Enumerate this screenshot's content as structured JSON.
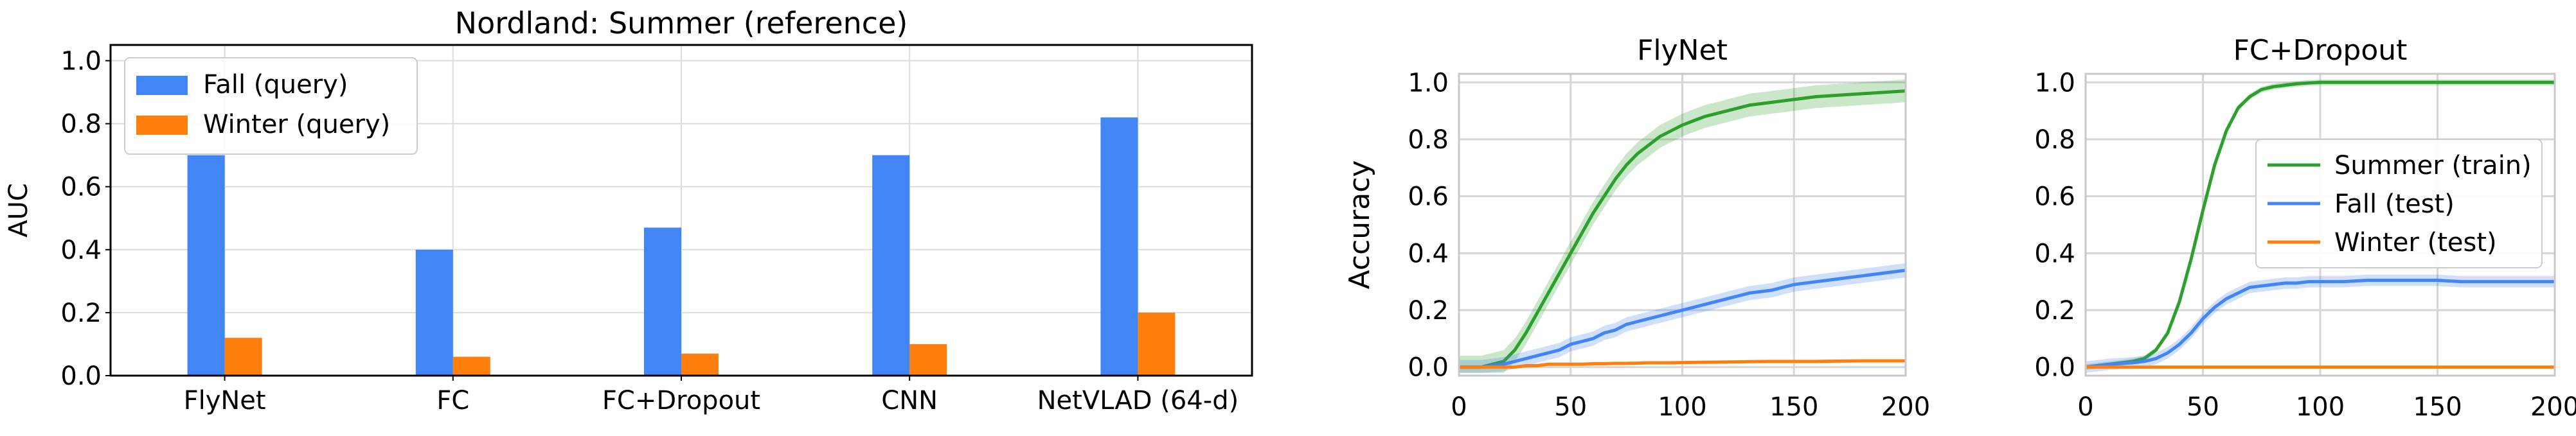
{
  "chart_data": [
    {
      "type": "bar",
      "title": "Nordland: Summer (reference)",
      "xlabel": "",
      "ylabel": "AUC",
      "ylim": [
        0,
        1.05
      ],
      "yticks": [
        "0.0",
        "0.2",
        "0.4",
        "0.6",
        "0.8",
        "1.0"
      ],
      "grid": true,
      "legend_position": "upper-left",
      "categories": [
        "FlyNet",
        "FC",
        "FC+Dropout",
        "CNN",
        "NetVLAD (64-d)"
      ],
      "series": [
        {
          "name": "Fall (query)",
          "color": "#4285f4",
          "values": [
            0.7,
            0.4,
            0.47,
            0.7,
            0.82
          ]
        },
        {
          "name": "Winter (query)",
          "color": "#ff7f0e",
          "values": [
            0.12,
            0.06,
            0.07,
            0.1,
            0.2
          ]
        }
      ]
    },
    {
      "type": "line",
      "title": "FlyNet",
      "xlabel": "",
      "ylabel": "Accuracy",
      "xlim": [
        0,
        200
      ],
      "ylim": [
        -0.03,
        1.03
      ],
      "xticks": [
        "0",
        "50",
        "100",
        "150",
        "200"
      ],
      "yticks": [
        "0.0",
        "0.2",
        "0.4",
        "0.6",
        "0.8",
        "1.0"
      ],
      "grid": true,
      "x": [
        0,
        10,
        20,
        25,
        30,
        35,
        40,
        45,
        50,
        55,
        60,
        65,
        70,
        75,
        80,
        85,
        90,
        95,
        100,
        110,
        120,
        130,
        140,
        150,
        160,
        170,
        180,
        190,
        200
      ],
      "series": [
        {
          "name": "Summer (train)",
          "color": "#2ca02c",
          "values": [
            0.0,
            0.0,
            0.02,
            0.06,
            0.12,
            0.19,
            0.26,
            0.33,
            0.4,
            0.47,
            0.54,
            0.6,
            0.66,
            0.71,
            0.75,
            0.78,
            0.81,
            0.83,
            0.85,
            0.88,
            0.9,
            0.92,
            0.93,
            0.94,
            0.95,
            0.955,
            0.96,
            0.965,
            0.97
          ],
          "band": 0.04
        },
        {
          "name": "Fall (test)",
          "color": "#4285f4",
          "values": [
            0.0,
            0.0,
            0.01,
            0.02,
            0.03,
            0.04,
            0.05,
            0.06,
            0.08,
            0.09,
            0.1,
            0.12,
            0.13,
            0.15,
            0.16,
            0.17,
            0.18,
            0.19,
            0.2,
            0.22,
            0.24,
            0.26,
            0.27,
            0.29,
            0.3,
            0.31,
            0.32,
            0.33,
            0.34
          ],
          "band": 0.025
        },
        {
          "name": "Winter (test)",
          "color": "#ff7f0e",
          "values": [
            0.0,
            0.0,
            0.0,
            0.0,
            0.005,
            0.005,
            0.01,
            0.01,
            0.01,
            0.01,
            0.012,
            0.012,
            0.013,
            0.013,
            0.014,
            0.015,
            0.015,
            0.015,
            0.016,
            0.017,
            0.018,
            0.019,
            0.02,
            0.02,
            0.02,
            0.021,
            0.022,
            0.022,
            0.022
          ],
          "band": 0.005
        }
      ]
    },
    {
      "type": "line",
      "title": "FC+Dropout",
      "xlabel": "",
      "ylabel": "",
      "xlim": [
        0,
        200
      ],
      "ylim": [
        -0.03,
        1.03
      ],
      "xticks": [
        "0",
        "50",
        "100",
        "150",
        "200"
      ],
      "yticks": [
        "0.0",
        "0.2",
        "0.4",
        "0.6",
        "0.8",
        "1.0"
      ],
      "grid": true,
      "legend_position": "center-right",
      "x": [
        0,
        10,
        20,
        25,
        30,
        35,
        40,
        45,
        50,
        55,
        60,
        65,
        70,
        75,
        80,
        85,
        90,
        95,
        100,
        110,
        120,
        130,
        140,
        150,
        160,
        170,
        180,
        190,
        200
      ],
      "series": [
        {
          "name": "Summer (train)",
          "color": "#2ca02c",
          "values": [
            0.0,
            0.01,
            0.02,
            0.03,
            0.06,
            0.12,
            0.23,
            0.38,
            0.55,
            0.71,
            0.83,
            0.91,
            0.95,
            0.975,
            0.985,
            0.99,
            0.995,
            0.998,
            1.0,
            1.0,
            1.0,
            1.0,
            1.0,
            1.0,
            1.0,
            1.0,
            1.0,
            1.0,
            1.0
          ],
          "band": 0.01
        },
        {
          "name": "Fall (test)",
          "color": "#4285f4",
          "values": [
            0.0,
            0.01,
            0.015,
            0.02,
            0.03,
            0.05,
            0.08,
            0.12,
            0.17,
            0.21,
            0.24,
            0.26,
            0.28,
            0.285,
            0.29,
            0.295,
            0.295,
            0.3,
            0.3,
            0.3,
            0.305,
            0.305,
            0.305,
            0.305,
            0.3,
            0.3,
            0.3,
            0.3,
            0.3
          ],
          "band": 0.02
        },
        {
          "name": "Winter (test)",
          "color": "#ff7f0e",
          "values": [
            0.0,
            0.0,
            0.0,
            0.0,
            0.0,
            0.0,
            0.0,
            0.0,
            0.0,
            0.0,
            0.0,
            0.0,
            0.0,
            0.0,
            0.0,
            0.0,
            0.0,
            0.0,
            0.0,
            0.0,
            0.0,
            0.0,
            0.0,
            0.0,
            0.0,
            0.0,
            0.0,
            0.0,
            0.0
          ],
          "band": 0.003
        }
      ]
    }
  ]
}
